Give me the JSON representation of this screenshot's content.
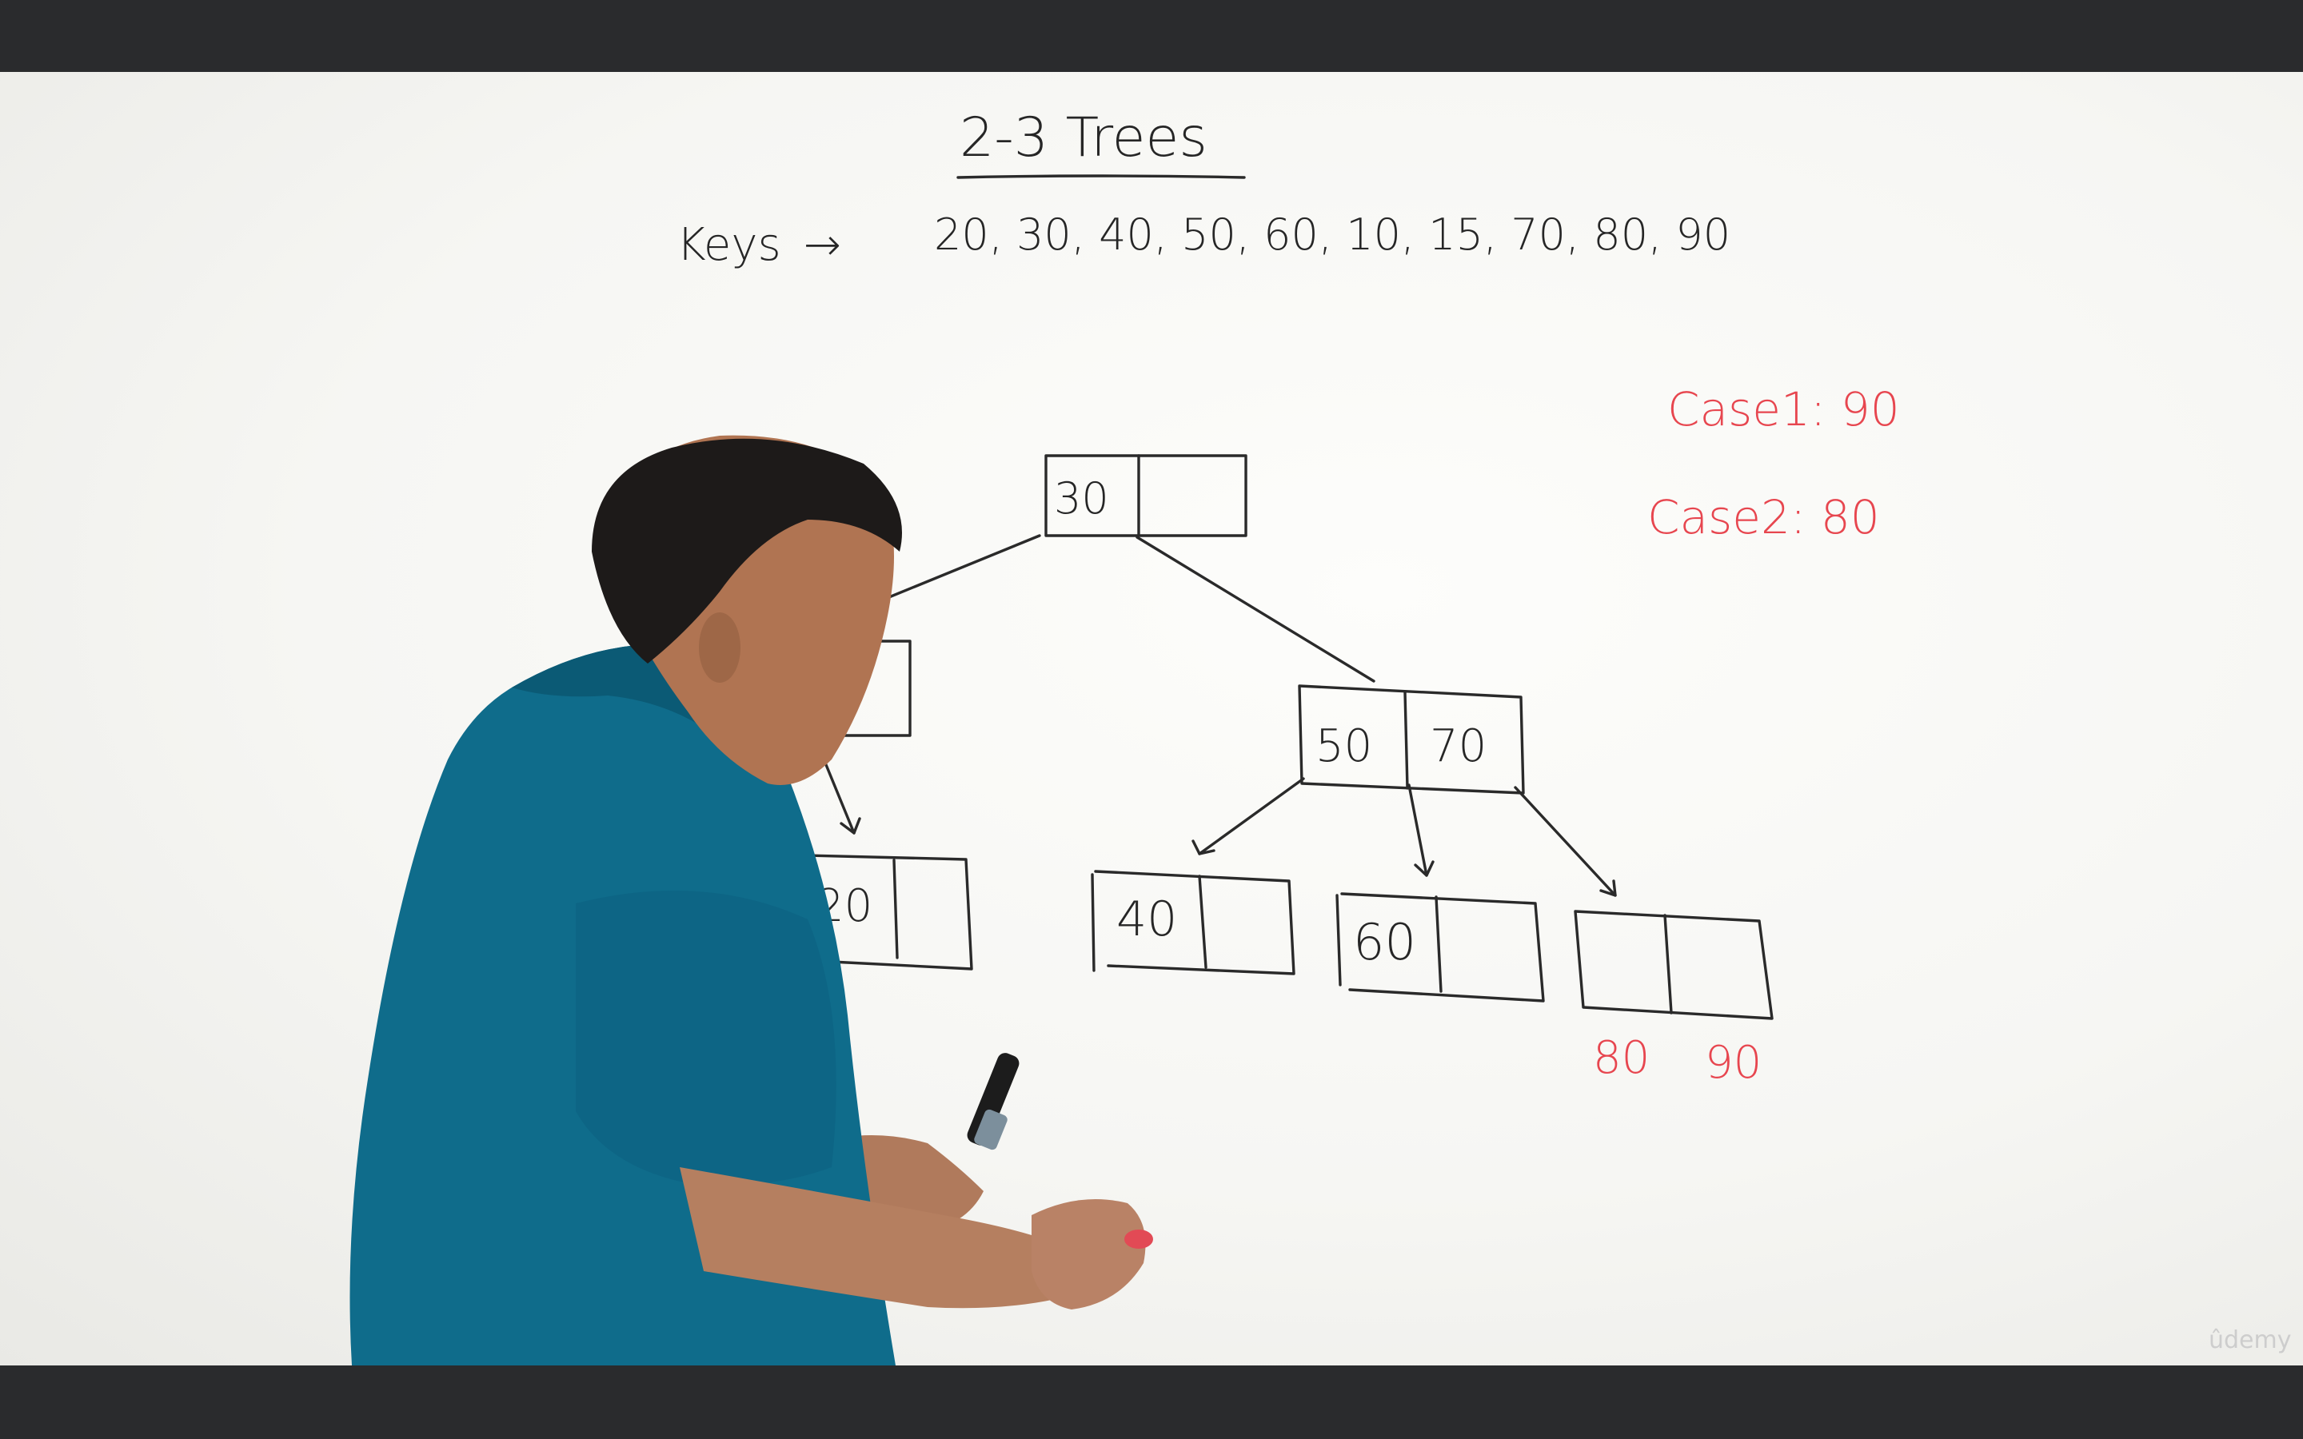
{
  "board": {
    "title": "2-3 Trees",
    "keys_label": "Keys",
    "keys_arrow": "→",
    "keys_list": "20, 30, 40, 50, 60, 10, 15, 70, 80, 90",
    "case1": "Case1: 90",
    "case2": "Case2: 80"
  },
  "tree": {
    "root": [
      "30",
      ""
    ],
    "left_child": [
      "",
      ""
    ],
    "right_child": [
      "50",
      "70"
    ],
    "leaves": [
      [
        "20",
        ""
      ],
      [
        "40",
        ""
      ],
      [
        "60",
        ""
      ],
      [
        "",
        ""
      ]
    ],
    "below_last_leaf": [
      "80",
      "90"
    ]
  },
  "watermark": "ûdemy",
  "colors": {
    "ink": "#262626",
    "marker_red": "#e7464f",
    "shirt": "#0e6f8f",
    "letterbox": "#2a2b2d"
  }
}
